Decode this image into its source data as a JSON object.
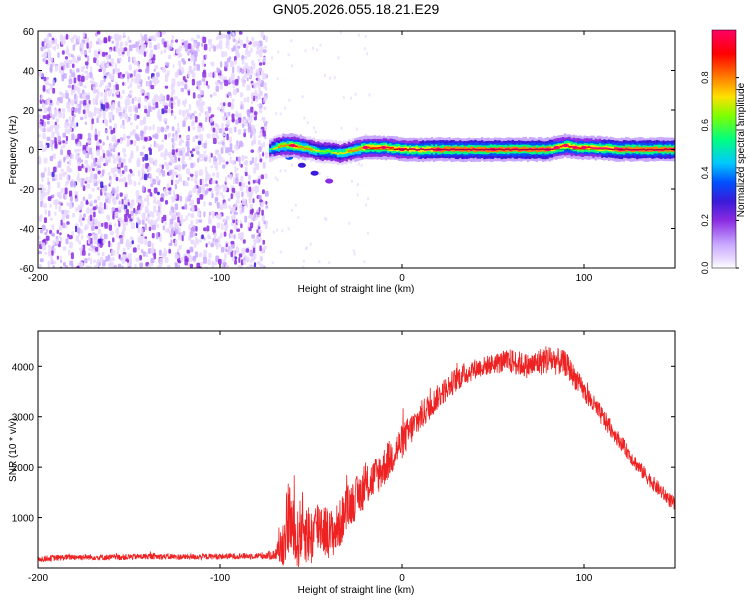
{
  "figure_title": "GN05.2026.055.18.21.E29",
  "colors": {
    "snr_line": "#ee2222",
    "axis": "#000000",
    "colormap": [
      "#ffffff",
      "#e8d8ff",
      "#c8a8ff",
      "#8a2be2",
      "#3a1ad8",
      "#0050ff",
      "#00c8ff",
      "#00ff7f",
      "#7fff00",
      "#ffe000",
      "#ff7f00",
      "#ff0000",
      "#ff0066"
    ]
  },
  "chart_data": [
    {
      "type": "heatmap",
      "title": "",
      "xlabel": "Height of straight line (km)",
      "ylabel": "Frequency (Hz)",
      "xlim": [
        -200,
        150
      ],
      "ylim": [
        -60,
        60
      ],
      "xticks": [
        -200,
        -100,
        0,
        100
      ],
      "yticks": [
        -60,
        -40,
        -20,
        0,
        20,
        40,
        60
      ],
      "colorbar": {
        "label": "Normalized spectral amplitude",
        "range": [
          0,
          1
        ],
        "ticks": [
          0.0,
          0.2,
          0.4,
          0.6,
          0.8
        ]
      },
      "noise_region": {
        "x": [
          -200,
          -75
        ],
        "y": [
          -60,
          60
        ],
        "amplitude": [
          0.05,
          0.3
        ]
      },
      "carrier_ridge": [
        {
          "x": -73,
          "y": 0,
          "amplitude": 0.6
        },
        {
          "x": -70,
          "y": 1,
          "amplitude": 0.75
        },
        {
          "x": -66,
          "y": 2,
          "amplitude": 0.85
        },
        {
          "x": -60,
          "y": 2,
          "amplitude": 0.9
        },
        {
          "x": -55,
          "y": 1,
          "amplitude": 0.85
        },
        {
          "x": -50,
          "y": 0,
          "amplitude": 0.8
        },
        {
          "x": -45,
          "y": -1,
          "amplitude": 0.7
        },
        {
          "x": -40,
          "y": -1,
          "amplitude": 0.7
        },
        {
          "x": -35,
          "y": -2,
          "amplitude": 0.75
        },
        {
          "x": -30,
          "y": -1,
          "amplitude": 0.8
        },
        {
          "x": -20,
          "y": 1,
          "amplitude": 0.9
        },
        {
          "x": -10,
          "y": 1,
          "amplitude": 0.9
        },
        {
          "x": 0,
          "y": 0,
          "amplitude": 0.95
        },
        {
          "x": 20,
          "y": 0,
          "amplitude": 1.0
        },
        {
          "x": 50,
          "y": 0,
          "amplitude": 1.0
        },
        {
          "x": 80,
          "y": 0,
          "amplitude": 1.0
        },
        {
          "x": 85,
          "y": 1,
          "amplitude": 0.95
        },
        {
          "x": 90,
          "y": 2,
          "amplitude": 0.9
        },
        {
          "x": 95,
          "y": 1,
          "amplitude": 0.9
        },
        {
          "x": 100,
          "y": 1,
          "amplitude": 0.95
        },
        {
          "x": 120,
          "y": 0,
          "amplitude": 1.0
        },
        {
          "x": 150,
          "y": 0,
          "amplitude": 1.0
        }
      ],
      "secondary_tail": [
        {
          "x": -62,
          "y": -4,
          "amplitude": 0.45
        },
        {
          "x": -55,
          "y": -8,
          "amplitude": 0.35
        },
        {
          "x": -48,
          "y": -12,
          "amplitude": 0.3
        },
        {
          "x": -40,
          "y": -16,
          "amplitude": 0.25
        }
      ]
    },
    {
      "type": "line",
      "title": "",
      "xlabel": "Height of straight line (km)",
      "ylabel": "SNR (10 * v/v)",
      "xlim": [
        -200,
        150
      ],
      "ylim": [
        0,
        4700
      ],
      "xticks": [
        -200,
        -100,
        0,
        100
      ],
      "yticks": [
        1000,
        2000,
        3000,
        4000
      ],
      "series": [
        {
          "x": [
            -200,
            -180,
            -160,
            -140,
            -120,
            -100,
            -80,
            -70,
            -65,
            -62,
            -60,
            -58,
            -55,
            -50,
            -45,
            -40,
            -35,
            -30,
            -20,
            -10,
            0,
            10,
            20,
            30,
            40,
            50,
            60,
            70,
            80,
            90,
            100,
            110,
            120,
            130,
            140,
            150
          ],
          "y": [
            180,
            220,
            210,
            230,
            220,
            230,
            240,
            260,
            500,
            1100,
            700,
            450,
            850,
            600,
            900,
            650,
            800,
            1200,
            1600,
            2000,
            2500,
            3000,
            3400,
            3750,
            3950,
            4050,
            4100,
            4000,
            4150,
            4050,
            3500,
            3000,
            2500,
            2000,
            1600,
            1250
          ],
          "noise_amplitude": [
            60,
            60,
            60,
            60,
            60,
            60,
            60,
            100,
            500,
            800,
            700,
            600,
            700,
            600,
            600,
            500,
            500,
            450,
            400,
            400,
            350,
            300,
            250,
            250,
            200,
            200,
            250,
            250,
            300,
            250,
            200,
            200,
            150,
            150,
            150,
            150
          ]
        }
      ]
    }
  ]
}
